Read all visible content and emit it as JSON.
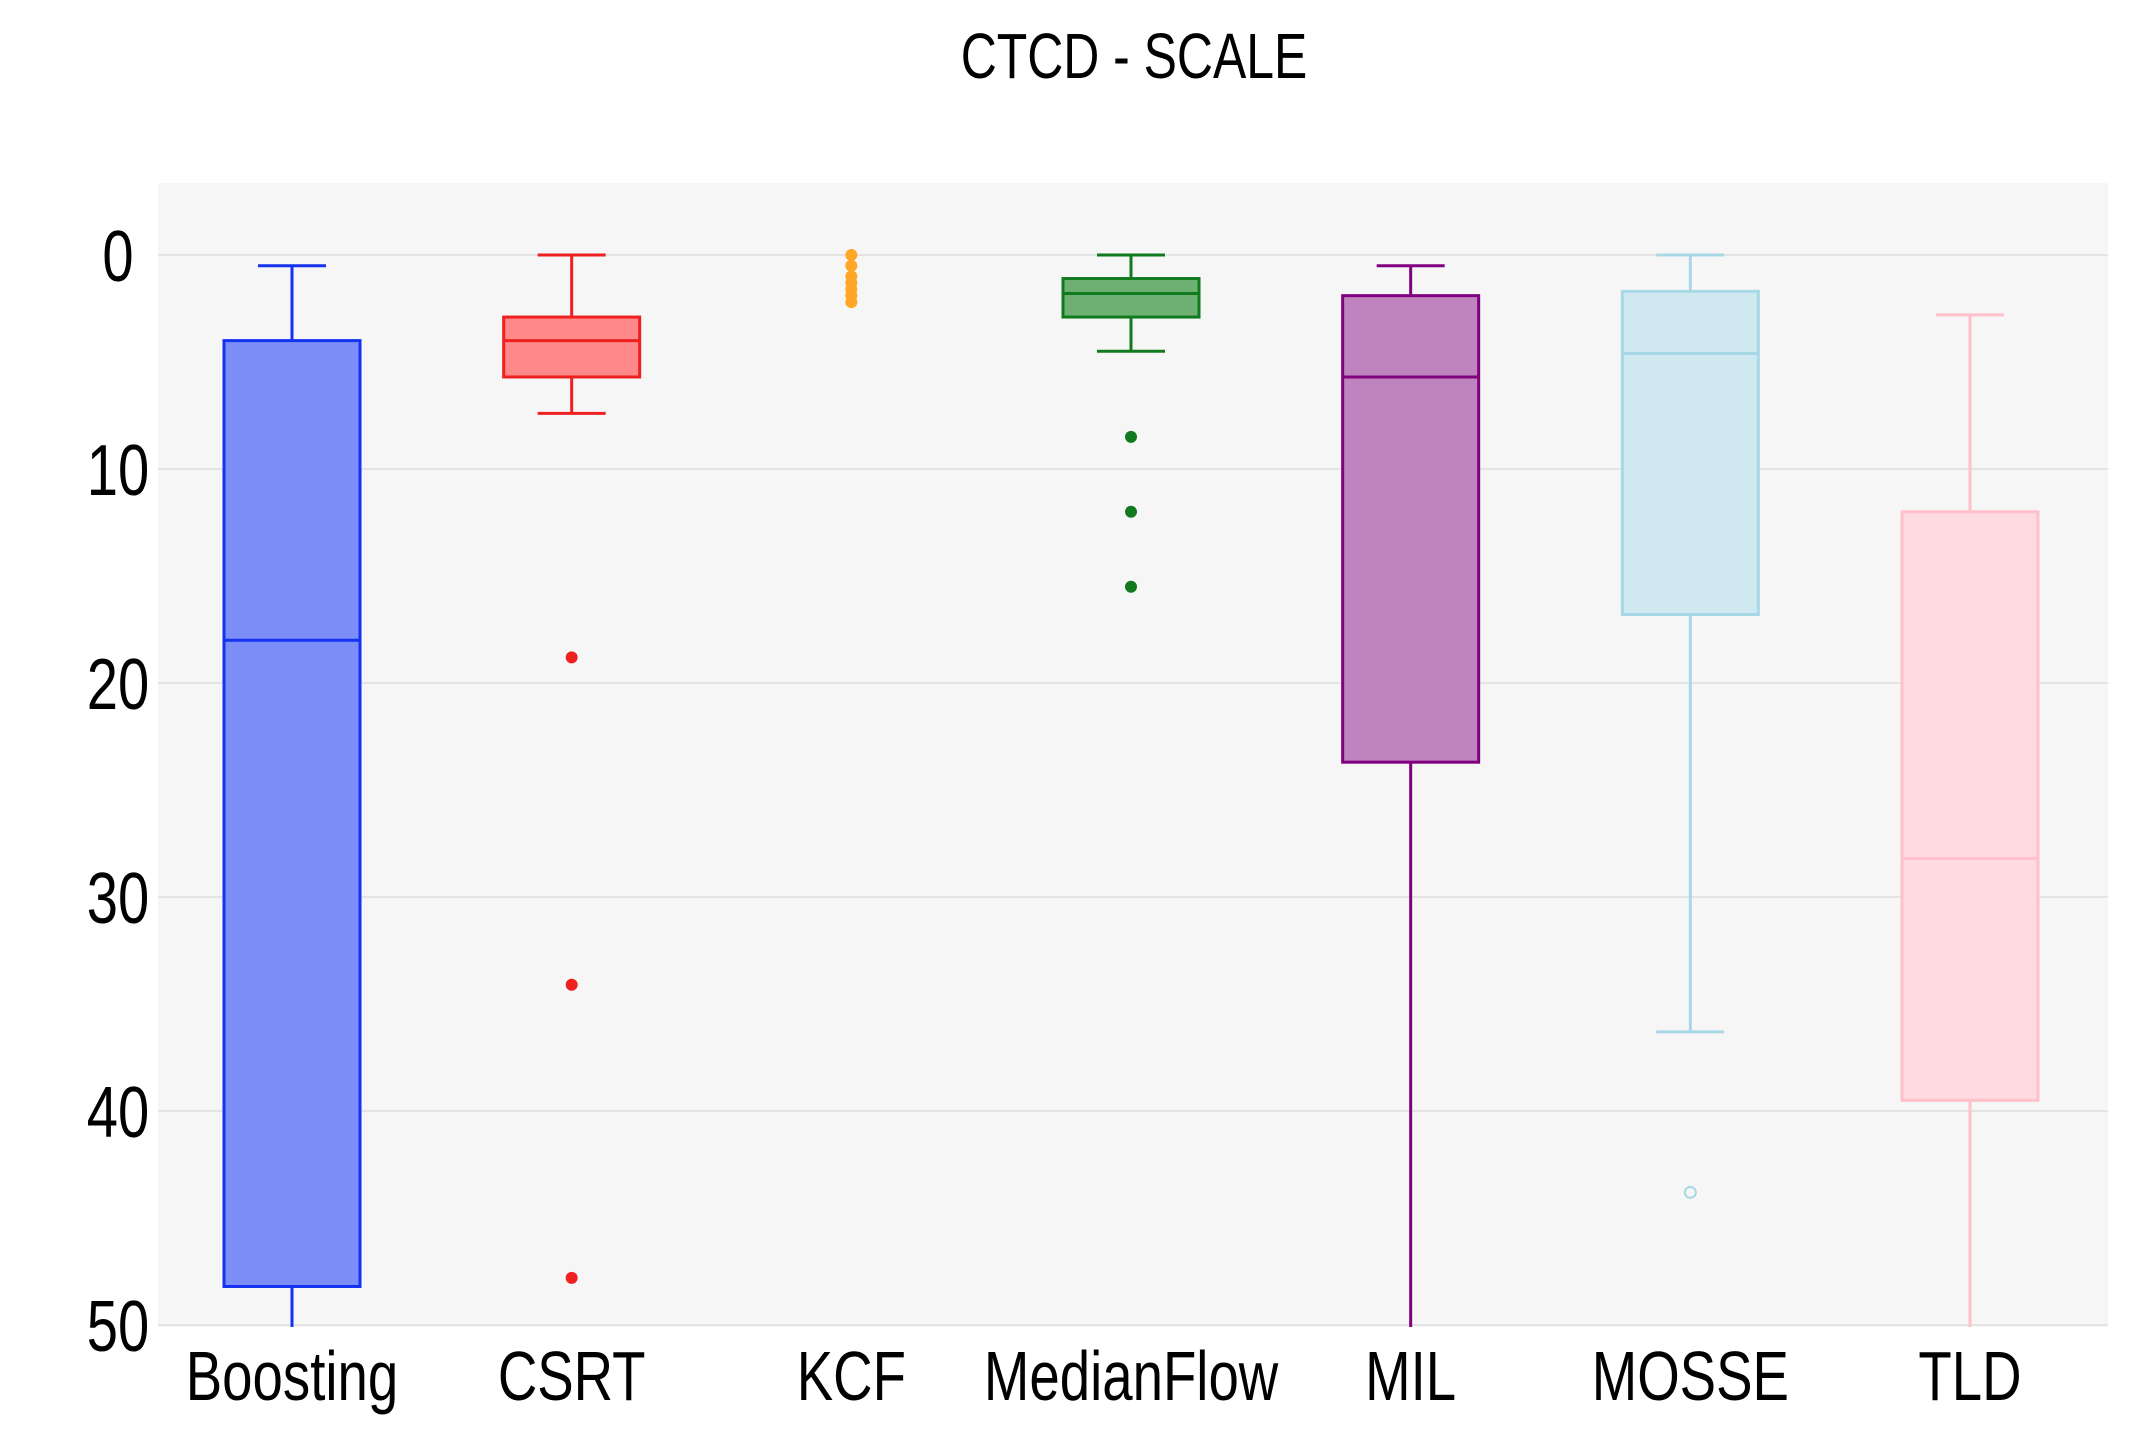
{
  "chart_data": {
    "type": "box",
    "title": "CTCD - SCALE",
    "xlabel": "",
    "ylabel": "",
    "y_axis": {
      "range": [
        -3.5,
        50.2
      ],
      "reversed": true,
      "ticks": [
        0,
        10,
        20,
        30,
        40,
        50
      ],
      "grid": true
    },
    "categories": [
      "Boosting",
      "CSRT",
      "KCF",
      "MedianFlow",
      "MIL",
      "MOSSE",
      "TLD"
    ],
    "series": [
      {
        "category": "Boosting",
        "color": "#1432f0",
        "fill": "#7b8ef7",
        "box": true,
        "whisker_low": 0.5,
        "q1": 4.0,
        "median": 18.0,
        "q3": 48.2,
        "whisker_high": 50.2,
        "outliers": [],
        "outlier_style": "filled"
      },
      {
        "category": "CSRT",
        "color": "#ee2020",
        "fill": "#ff8888",
        "box": true,
        "whisker_low": 0.0,
        "q1": 2.9,
        "median": 4.0,
        "q3": 5.7,
        "whisker_high": 7.4,
        "outliers": [
          18.8,
          34.1,
          47.8
        ],
        "outlier_style": "filled"
      },
      {
        "category": "KCF",
        "color": "#ffa726",
        "fill": "#ffa726",
        "box": false,
        "outliers": [
          0.0,
          0.5,
          1.0,
          1.3,
          1.6,
          1.9,
          2.2
        ],
        "outlier_style": "filled"
      },
      {
        "category": "MedianFlow",
        "color": "#127a1e",
        "fill": "#6db071",
        "box": true,
        "whisker_low": 0.0,
        "q1": 1.1,
        "median": 1.8,
        "q3": 2.9,
        "whisker_high": 4.5,
        "outliers": [
          8.5,
          12.0,
          15.5
        ],
        "outlier_style": "filled"
      },
      {
        "category": "MIL",
        "color": "#800080",
        "fill": "#bf84bf",
        "box": true,
        "whisker_low": 0.5,
        "q1": 1.9,
        "median": 5.7,
        "q3": 23.7,
        "whisker_high": 50.2,
        "outliers": [],
        "outlier_style": "filled"
      },
      {
        "category": "MOSSE",
        "color": "#a8d8e6",
        "fill": "#d0e8ef",
        "box": true,
        "whisker_low": 0.0,
        "q1": 1.7,
        "median": 4.6,
        "q3": 16.8,
        "whisker_high": 36.3,
        "outliers": [
          43.8
        ],
        "outlier_style": "hollow"
      },
      {
        "category": "TLD",
        "color": "#ffc0cb",
        "fill": "#fddbe1",
        "box": true,
        "whisker_low": 2.8,
        "q1": 12.0,
        "median": 28.2,
        "q3": 39.5,
        "whisker_high": 50.2,
        "outliers": [],
        "outlier_style": "filled"
      }
    ],
    "colors": {
      "plot_background": "#f6f6f6",
      "gridline": "#dddddd"
    }
  }
}
